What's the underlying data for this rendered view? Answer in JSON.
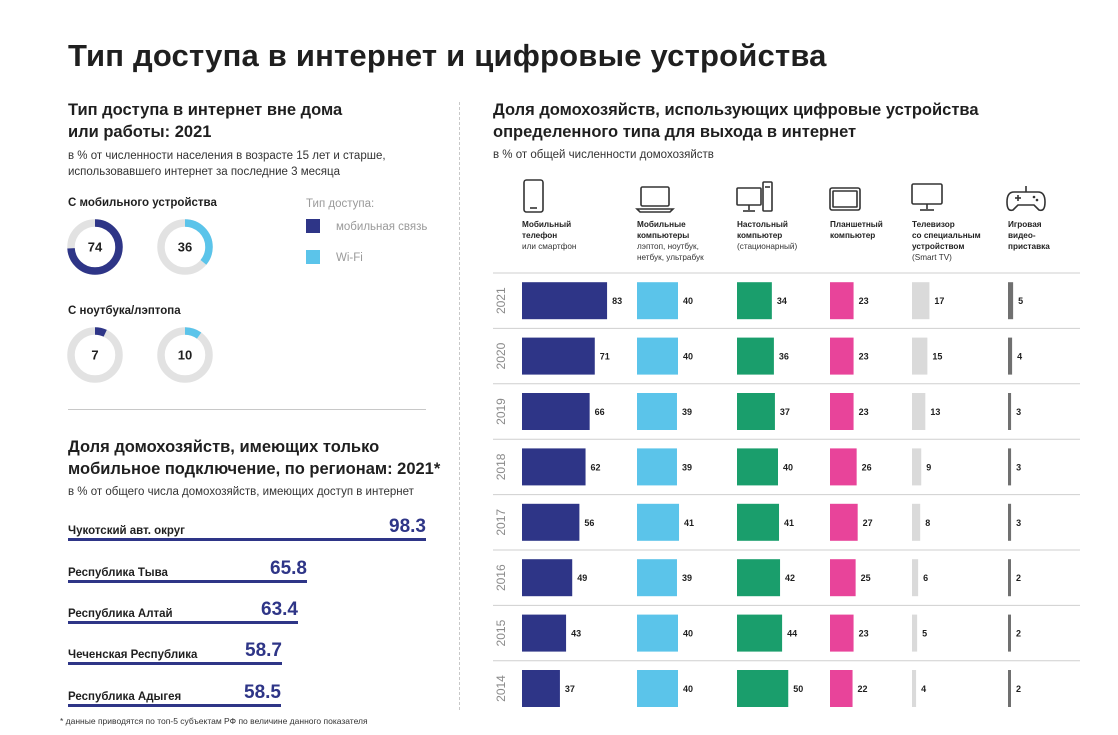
{
  "title": "Тип доступа в интернет и цифровые устройства",
  "left_top": {
    "heading_1": "Тип доступа в интернет вне дома",
    "heading_2": "или работы: 2021",
    "sub_1": "в % от численности населения в возрасте 15 лет и старше,",
    "sub_2": "использовавшего интернет за последние 3 месяца",
    "mobile_label": "С мобильного устройства",
    "laptop_label": "С ноутбука/лэптопа",
    "legend_title": "Тип доступа:",
    "legend_mobile": "мобильная связь",
    "legend_wifi": "Wi-Fi",
    "colors": {
      "mobile": "#2e3587",
      "wifi": "#5bc4ea",
      "track": "#e2e2e2"
    },
    "donuts": {
      "mobile_cellular": {
        "value": 74
      },
      "mobile_wifi": {
        "value": 36
      },
      "laptop_cellular": {
        "value": 7
      },
      "laptop_wifi": {
        "value": 10
      }
    }
  },
  "left_bottom": {
    "heading_1": "Доля домохозяйств, имеющих только",
    "heading_2": "мобильное подключение, по регионам: 2021*",
    "sub": "в % от общего числа домохозяйств, имеющих доступ в интернет",
    "regions": [
      {
        "name": "Чукотский авт. округ",
        "value": "98.3"
      },
      {
        "name": "Республика Тыва",
        "value": "65.8"
      },
      {
        "name": "Республика Алтай",
        "value": "63.4"
      },
      {
        "name": "Чеченская Республика",
        "value": "58.7"
      },
      {
        "name": "Республика Адыгея",
        "value": "58.5"
      }
    ]
  },
  "footnote": "* данные приводятся по топ-5 субъектам РФ по величине данного показателя",
  "chart_data": {
    "type": "bar",
    "title": "Доля домохозяйств, использующих цифровые устройства определенного типа для выхода в интернет",
    "title_1": "Доля домохозяйств, использующих цифровые устройства",
    "title_2": "определенного типа для выхода в интернет",
    "subtitle": "в % от общей численности домохозяйств",
    "categories": [
      "2021",
      "2020",
      "2019",
      "2018",
      "2017",
      "2016",
      "2015",
      "2014"
    ],
    "series": [
      {
        "name": "Мобильный телефон или смартфон",
        "label_bold": [
          "Мобильный",
          "телефон"
        ],
        "label_rest": [
          "или смартфон"
        ],
        "icon": "smartphone-icon",
        "color": "#2e3587",
        "values": [
          83,
          71,
          66,
          62,
          56,
          49,
          43,
          37
        ]
      },
      {
        "name": "Мобильные компьютеры лэптоп, ноутбук, нетбук, ультрабук",
        "label_bold": [
          "Мобильные",
          "компьютеры"
        ],
        "label_rest": [
          "лэптоп, ноутбук,",
          "нетбук, ультрабук"
        ],
        "icon": "laptop-icon",
        "color": "#5bc4ea",
        "values": [
          40,
          40,
          39,
          39,
          41,
          39,
          40,
          40
        ]
      },
      {
        "name": "Настольный компьютер (стационарный)",
        "label_bold": [
          "Настольный",
          "компьютер"
        ],
        "label_rest": [
          "(стационарный)"
        ],
        "icon": "desktop-computer-icon",
        "color": "#1a9e6c",
        "values": [
          34,
          36,
          37,
          40,
          41,
          42,
          44,
          50
        ]
      },
      {
        "name": "Планшетный компьютер",
        "label_bold": [
          "Планшетный",
          "компьютер"
        ],
        "label_rest": [],
        "icon": "tablet-icon",
        "color": "#e8449a",
        "values": [
          23,
          23,
          23,
          26,
          27,
          25,
          23,
          22
        ]
      },
      {
        "name": "Телевизор со специальным устройством (Smart TV)",
        "label_bold": [
          "Телевизор",
          "со специальным",
          "устройством"
        ],
        "label_rest": [
          "(Smart TV)"
        ],
        "icon": "tv-icon",
        "color": "#dadada",
        "values": [
          17,
          15,
          13,
          9,
          8,
          6,
          5,
          4
        ]
      },
      {
        "name": "Игровая видео-приставка",
        "label_bold": [
          "Игровая",
          "видео-",
          "приставка"
        ],
        "label_rest": [],
        "icon": "gamepad-icon",
        "color": "#707070",
        "values": [
          5,
          4,
          3,
          3,
          3,
          2,
          2,
          2
        ]
      }
    ],
    "grid": false,
    "legend": "top"
  }
}
